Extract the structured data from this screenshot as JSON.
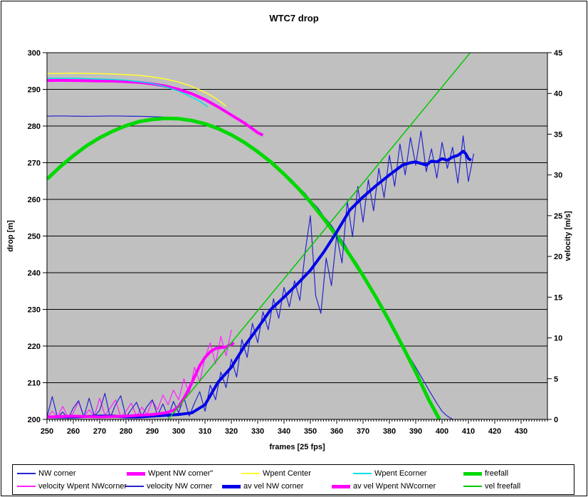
{
  "chart": {
    "title": "WTC7 drop",
    "plot_bg": "#C0C0C0",
    "grid_color": "#000000",
    "x_axis": {
      "label": "frames [25 fps]",
      "min": 250,
      "max": 440,
      "tick_labels": [
        250,
        260,
        270,
        280,
        290,
        300,
        310,
        320,
        330,
        340,
        350,
        360,
        370,
        380,
        390,
        400,
        410,
        420,
        430
      ],
      "minor_tick_step": 1
    },
    "y_left": {
      "label": "drop [m]",
      "min": 200,
      "max": 300,
      "tick_labels": [
        300,
        290,
        280,
        270,
        260,
        250,
        240,
        230,
        220,
        210,
        200
      ]
    },
    "y_right": {
      "label": "velocity [m/s]",
      "min": 0,
      "max": 45,
      "tick_labels": [
        45,
        40,
        35,
        30,
        25,
        20,
        15,
        10,
        5,
        0
      ]
    }
  },
  "chart_data": {
    "type": "line",
    "title": "WTC7 drop",
    "xlabel": "frames [25 fps]",
    "ylabel_left": "drop [m]",
    "ylabel_right": "velocity [m/s]",
    "xlim": [
      250,
      440
    ],
    "ylim_left": [
      200,
      300
    ],
    "ylim_right": [
      0,
      45
    ],
    "grid": "horizontal",
    "legend_position": "bottom",
    "series": [
      {
        "name": "NW corner",
        "axis": "left",
        "color": "#2424CE",
        "width": 1.2,
        "x": [
          250,
          255,
          260,
          265,
          270,
          275,
          280,
          285,
          288,
          290,
          292,
          295,
          298,
          300,
          303,
          305,
          308,
          310,
          313,
          315,
          318,
          320,
          323,
          325,
          328,
          330,
          333,
          335,
          338,
          340,
          343,
          345,
          348,
          350,
          353,
          355,
          358,
          360,
          363,
          365,
          368,
          370,
          373,
          375,
          378,
          380,
          383,
          385,
          388,
          390,
          393,
          395,
          398,
          400,
          402,
          404
        ],
        "y": [
          282.7,
          282.75,
          282.7,
          282.65,
          282.7,
          282.75,
          282.7,
          282.65,
          282.6,
          282.55,
          282.5,
          282.4,
          282.2,
          282.0,
          281.7,
          281.4,
          280.9,
          280.4,
          279.6,
          279.0,
          278.0,
          277.3,
          276.2,
          275.3,
          274.0,
          273.0,
          271.5,
          270.3,
          268.6,
          267.2,
          265.3,
          263.7,
          261.6,
          259.8,
          257.5,
          255.4,
          252.9,
          250.6,
          247.8,
          245.3,
          242.2,
          239.6,
          236.2,
          233.4,
          229.8,
          226.8,
          223.0,
          220.2,
          216.6,
          214.2,
          210.5,
          208.0,
          204.4,
          202.2,
          200.9,
          200.0
        ]
      },
      {
        "name": "Wpent NW corner\"",
        "axis": "left",
        "color": "#FF00FF",
        "width": 4,
        "x": [
          250,
          255,
          260,
          265,
          270,
          275,
          280,
          285,
          290,
          295,
          300,
          305,
          310,
          315,
          320,
          325,
          330,
          332
        ],
        "y": [
          292.4,
          292.45,
          292.4,
          292.35,
          292.3,
          292.25,
          292.1,
          291.9,
          291.5,
          290.9,
          290.0,
          288.8,
          287.2,
          285.2,
          283.0,
          280.8,
          278.2,
          277.5
        ]
      },
      {
        "name": "Wpent Center",
        "axis": "left",
        "color": "#FFFF33",
        "width": 1.5,
        "x": [
          250,
          255,
          260,
          265,
          270,
          275,
          280,
          285,
          290,
          295,
          300,
          305,
          310,
          314,
          318
        ],
        "y": [
          294.3,
          294.35,
          294.4,
          294.35,
          294.3,
          294.2,
          294.0,
          293.8,
          293.4,
          292.8,
          292.0,
          290.8,
          289.2,
          287.6,
          285.4
        ]
      },
      {
        "name": "Wpent Ecorner",
        "axis": "left",
        "color": "#00E0E0",
        "width": 1.5,
        "x": [
          250,
          255,
          260,
          265,
          270,
          275,
          280,
          285,
          290,
          295,
          300,
          304,
          308,
          311
        ],
        "y": [
          293.0,
          293.0,
          293.0,
          292.9,
          292.8,
          292.7,
          292.5,
          292.1,
          291.6,
          290.7,
          289.5,
          288.2,
          286.8,
          285.2
        ]
      },
      {
        "name": "freefall",
        "axis": "left",
        "color": "#00D800",
        "width": 5,
        "x": [
          250,
          255,
          260,
          265,
          270,
          275,
          280,
          285,
          290,
          295,
          300,
          305,
          310,
          315,
          320,
          325,
          330,
          335,
          340,
          345,
          350,
          355,
          360,
          365,
          370,
          375,
          380,
          385,
          390,
          395,
          399
        ],
        "y": [
          265.5,
          268.9,
          271.9,
          274.6,
          276.8,
          278.6,
          280.1,
          281.2,
          281.8,
          282.1,
          282.0,
          281.5,
          280.6,
          279.3,
          277.6,
          275.5,
          273.0,
          270.2,
          266.9,
          263.3,
          259.3,
          254.8,
          250.0,
          244.8,
          239.2,
          233.2,
          226.8,
          220.0,
          212.9,
          205.3,
          200.0
        ]
      },
      {
        "name": "velocity Wpent NWcorner",
        "axis": "right",
        "color": "#FF22FF",
        "width": 1.2,
        "x": [
          250,
          252,
          254,
          256,
          258,
          260,
          262,
          264,
          266,
          268,
          270,
          272,
          274,
          276,
          278,
          280,
          282,
          284,
          286,
          288,
          290,
          292,
          294,
          296,
          298,
          300,
          302,
          304,
          306,
          308,
          310,
          312,
          314,
          316,
          318,
          320
        ],
        "y": [
          0.2,
          1.0,
          0.3,
          1.6,
          0.2,
          0.8,
          2.2,
          0.3,
          1.2,
          0.4,
          2.6,
          0.5,
          1.4,
          2.4,
          0.3,
          1.0,
          2.0,
          0.4,
          1.5,
          0.6,
          2.3,
          1.2,
          3.0,
          1.8,
          3.6,
          2.4,
          5.0,
          3.2,
          6.4,
          4.6,
          7.6,
          9.4,
          6.8,
          10.2,
          7.8,
          11.0
        ]
      },
      {
        "name": "velocity NW corner",
        "axis": "right",
        "color": "#2424CE",
        "width": 1.2,
        "x": [
          250,
          252,
          254,
          256,
          258,
          260,
          262,
          264,
          266,
          268,
          270,
          272,
          274,
          276,
          278,
          280,
          282,
          284,
          286,
          288,
          290,
          292,
          294,
          296,
          298,
          300,
          302,
          304,
          306,
          308,
          310,
          312,
          314,
          316,
          318,
          320,
          322,
          324,
          326,
          328,
          330,
          332,
          334,
          336,
          338,
          340,
          342,
          344,
          346,
          348,
          350,
          352,
          354,
          356,
          358,
          360,
          362,
          364,
          366,
          368,
          370,
          372,
          374,
          376,
          378,
          380,
          382,
          384,
          386,
          388,
          390,
          392,
          394,
          396,
          398,
          400,
          402,
          404,
          406,
          408,
          410,
          412
        ],
        "y": [
          0.3,
          2.8,
          0.2,
          0.9,
          0.1,
          1.4,
          2.3,
          0.3,
          2.6,
          0.4,
          1.1,
          3.2,
          0.2,
          1.8,
          2.9,
          0.3,
          1.2,
          2.1,
          0.4,
          1.6,
          2.4,
          0.5,
          1.9,
          0.3,
          2.2,
          0.8,
          2.7,
          0.4,
          2.0,
          3.4,
          1.0,
          4.2,
          2.4,
          5.8,
          3.9,
          7.4,
          5.2,
          9.8,
          7.6,
          11.8,
          9.4,
          13.2,
          11.0,
          14.8,
          12.4,
          16.2,
          13.8,
          17.0,
          14.6,
          20.5,
          25.0,
          15.2,
          13.0,
          19.8,
          16.4,
          22.6,
          19.2,
          26.8,
          22.4,
          28.6,
          24.2,
          29.4,
          25.6,
          30.8,
          27.2,
          32.4,
          28.6,
          33.8,
          30.0,
          34.6,
          31.2,
          35.4,
          30.4,
          33.2,
          29.6,
          34.0,
          30.8,
          33.4,
          29.0,
          34.8,
          29.2,
          32.6
        ]
      },
      {
        "name": "av vel NW corner",
        "axis": "right",
        "color": "#0000E8",
        "width": 4,
        "x": [
          250,
          260,
          270,
          275,
          280,
          285,
          290,
          295,
          300,
          305,
          310,
          315,
          320,
          325,
          330,
          335,
          340,
          345,
          350,
          355,
          360,
          365,
          370,
          375,
          380,
          385,
          388,
          390,
          392,
          394,
          396,
          398,
          400,
          402,
          404,
          406,
          408,
          409,
          410,
          411
        ],
        "y": [
          0.3,
          0.3,
          0.4,
          0.4,
          0.3,
          0.3,
          0.4,
          0.5,
          0.6,
          0.8,
          1.8,
          4.6,
          6.4,
          9.0,
          11.2,
          13.5,
          15.0,
          16.6,
          18.3,
          20.5,
          23.0,
          25.7,
          27.3,
          28.7,
          30.0,
          31.2,
          31.5,
          31.6,
          31.4,
          31.2,
          31.7,
          31.6,
          32.0,
          31.8,
          32.2,
          32.4,
          32.9,
          32.6,
          32.0,
          31.8
        ]
      },
      {
        "name": "av vel Wpent NWcorner",
        "axis": "right",
        "color": "#FF00FF",
        "width": 4,
        "x": [
          250,
          260,
          270,
          280,
          285,
          290,
          295,
          298,
          300,
          302,
          304,
          306,
          308,
          310,
          312,
          314,
          316,
          318,
          320,
          321
        ],
        "y": [
          0.3,
          0.4,
          0.3,
          0.4,
          0.5,
          0.6,
          0.8,
          1.1,
          1.6,
          2.6,
          3.8,
          5.2,
          6.6,
          7.6,
          8.3,
          8.7,
          8.8,
          8.9,
          9.2,
          9.4
        ]
      },
      {
        "name": "vel freefall",
        "axis": "right",
        "color": "#00C800",
        "width": 1.5,
        "x": [
          296,
          410.7
        ],
        "y": [
          0,
          45
        ]
      }
    ]
  },
  "legend": {
    "rows": [
      {
        "items": [
          {
            "label": "NW corner",
            "color": "#2424CE",
            "thick": false
          },
          {
            "label": "Wpent NW corner\"",
            "color": "#FF00FF",
            "thick": true
          },
          {
            "label": "Wpent Center",
            "color": "#FFFF33",
            "thick": false
          },
          {
            "label": "Wpent Ecorner",
            "color": "#00E0E0",
            "thick": false
          },
          {
            "label": "freefall",
            "color": "#00D800",
            "thick": true
          }
        ]
      },
      {
        "items": [
          {
            "label": "velocity Wpent NWcorner",
            "color": "#FF22FF",
            "thick": false
          },
          {
            "label": "velocity NW corner",
            "color": "#2424CE",
            "thick": false
          },
          {
            "label": "av vel NW corner",
            "color": "#0000E8",
            "thick": true
          },
          {
            "label": "av vel Wpent NWcorner",
            "color": "#FF00FF",
            "thick": true
          },
          {
            "label": "vel freefall",
            "color": "#00C800",
            "thick": false
          }
        ]
      }
    ]
  }
}
